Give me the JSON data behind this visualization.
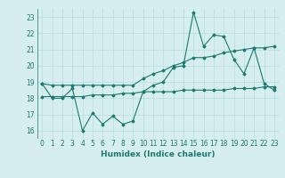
{
  "x": [
    0,
    1,
    2,
    3,
    4,
    5,
    6,
    7,
    8,
    9,
    10,
    11,
    12,
    13,
    14,
    15,
    16,
    17,
    18,
    19,
    20,
    21,
    22,
    23
  ],
  "line_main": [
    18.9,
    18.0,
    18.0,
    18.6,
    16.0,
    17.1,
    16.4,
    16.9,
    16.4,
    16.6,
    18.4,
    18.8,
    19.0,
    19.9,
    20.0,
    23.3,
    21.2,
    21.9,
    21.8,
    20.4,
    19.5,
    21.1,
    18.9,
    18.5
  ],
  "line_upper": [
    18.9,
    18.8,
    18.8,
    18.8,
    18.8,
    18.8,
    18.8,
    18.8,
    18.8,
    18.8,
    19.2,
    19.5,
    19.7,
    20.0,
    20.2,
    20.5,
    20.5,
    20.6,
    20.8,
    20.9,
    21.0,
    21.1,
    21.1,
    21.2
  ],
  "line_lower": [
    18.1,
    18.1,
    18.1,
    18.1,
    18.1,
    18.2,
    18.2,
    18.2,
    18.3,
    18.3,
    18.4,
    18.4,
    18.4,
    18.4,
    18.5,
    18.5,
    18.5,
    18.5,
    18.5,
    18.6,
    18.6,
    18.6,
    18.7,
    18.7
  ],
  "line_color": "#1a7a6e",
  "bg_color": "#d7eef0",
  "grid_color": "#b8dde0",
  "ylim": [
    15.5,
    23.5
  ],
  "xlim": [
    -0.5,
    23.5
  ],
  "yticks": [
    16,
    17,
    18,
    19,
    20,
    21,
    22,
    23
  ],
  "xticks": [
    0,
    1,
    2,
    3,
    4,
    5,
    6,
    7,
    8,
    9,
    10,
    11,
    12,
    13,
    14,
    15,
    16,
    17,
    18,
    19,
    20,
    21,
    22,
    23
  ],
  "xlabel": "Humidex (Indice chaleur)",
  "figsize": [
    3.2,
    2.0
  ],
  "dpi": 100
}
